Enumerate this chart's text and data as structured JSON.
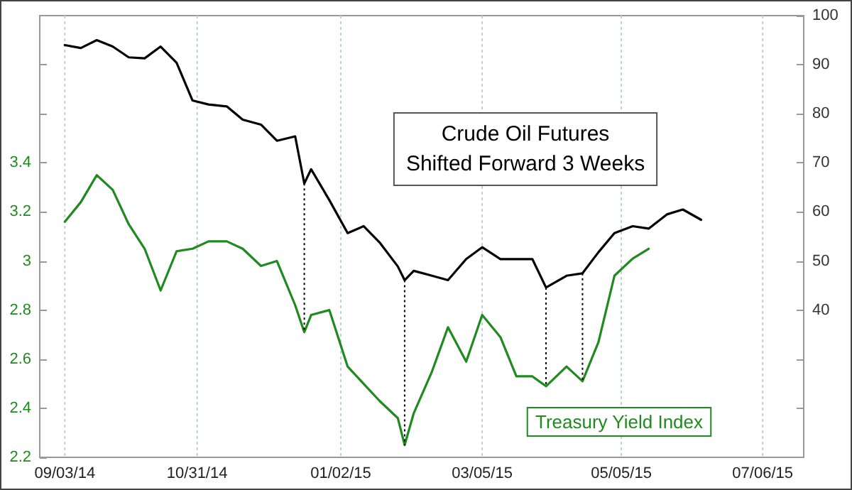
{
  "chart_data": {
    "type": "line",
    "x": [
      "2014-09-03",
      "2014-09-10",
      "2014-09-17",
      "2014-09-24",
      "2014-10-01",
      "2014-10-08",
      "2014-10-15",
      "2014-10-22",
      "2014-10-29",
      "2014-11-05",
      "2014-11-13",
      "2014-11-20",
      "2014-11-28",
      "2014-12-05",
      "2014-12-13",
      "2014-12-17",
      "2014-12-20",
      "2014-12-28",
      "2015-01-05",
      "2015-01-12",
      "2015-01-19",
      "2015-01-27",
      "2015-01-30",
      "2015-02-03",
      "2015-02-11",
      "2015-02-18",
      "2015-02-26",
      "2015-03-05",
      "2015-03-13",
      "2015-03-20",
      "2015-03-27",
      "2015-04-02",
      "2015-04-11",
      "2015-04-18",
      "2015-04-25",
      "2015-05-02",
      "2015-05-10",
      "2015-05-17",
      "2015-05-25",
      "2015-06-01",
      "2015-06-09"
    ],
    "series": [
      {
        "name": "Crude Oil Futures\nShifted Forward 3 Weeks",
        "color": "#000000",
        "axis": "y2",
        "values": [
          94.0,
          93.4,
          95.0,
          93.7,
          91.5,
          91.3,
          93.7,
          90.4,
          82.7,
          81.9,
          81.5,
          78.8,
          77.8,
          74.5,
          75.4,
          65.8,
          68.7,
          62.4,
          55.7,
          57.1,
          53.8,
          48.9,
          46.1,
          48.0,
          47.0,
          46.1,
          50.4,
          52.8,
          50.4,
          50.4,
          50.4,
          44.6,
          47.0,
          47.5,
          51.8,
          55.7,
          57.1,
          56.6,
          59.5,
          60.5,
          58.4
        ]
      },
      {
        "name": "Treasury Yield Index",
        "color": "#1f8a1f",
        "values": [
          3.16,
          3.24,
          3.35,
          3.29,
          3.15,
          3.05,
          2.88,
          3.04,
          3.05,
          3.08,
          3.08,
          3.05,
          2.98,
          3.0,
          2.82,
          2.71,
          2.78,
          2.8,
          2.57,
          2.5,
          2.43,
          2.36,
          2.25,
          2.38,
          2.55,
          2.73,
          2.59,
          2.78,
          2.69,
          2.53,
          2.53,
          2.49,
          2.57,
          2.51,
          2.67,
          2.94,
          3.01,
          3.05,
          null,
          null,
          null
        ]
      }
    ],
    "xlim": [
      "2014-08-23",
      "2015-07-24"
    ],
    "xticks": [
      {
        "value": "2014-09-03",
        "label": "09/03/14"
      },
      {
        "value": "2014-10-31",
        "label": "10/31/14"
      },
      {
        "value": "2015-01-02",
        "label": "01/02/15"
      },
      {
        "value": "2015-03-05",
        "label": "03/05/15"
      },
      {
        "value": "2015-05-05",
        "label": "05/05/15"
      },
      {
        "value": "2015-07-06",
        "label": "07/06/15"
      }
    ],
    "ylim": [
      2.2,
      4.0
    ],
    "yticks": [
      2.2,
      2.4,
      2.6,
      2.8,
      3,
      3.2,
      3.4,
      {
        "value": 3.6,
        "label": null
      },
      {
        "value": 3.8,
        "label": null
      }
    ],
    "y2lim": [
      10,
      100
    ],
    "y2ticks": [
      {
        "value": 20,
        "label": null
      },
      {
        "value": 30,
        "label": null
      },
      40,
      50,
      60,
      70,
      80,
      90,
      100
    ],
    "ref_lines": [
      {
        "axis": "x",
        "value": "2014-12-17",
        "line_style": "dotted",
        "color": "#000000"
      },
      {
        "axis": "x",
        "value": "2015-01-30",
        "line_style": "dotted",
        "color": "#000000"
      },
      {
        "axis": "x",
        "value": "2015-04-02",
        "line_style": "dotted",
        "color": "#000000"
      },
      {
        "axis": "x",
        "value": "2015-04-18",
        "line_style": "dotted",
        "color": "#000000"
      }
    ],
    "grid": "x",
    "legend": false,
    "marker": "none",
    "line_style": "solid"
  }
}
